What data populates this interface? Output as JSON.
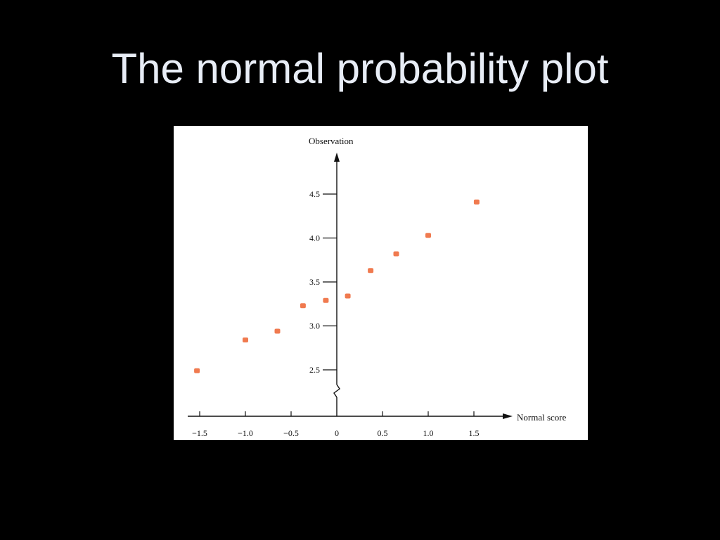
{
  "slide": {
    "title": "The normal probability plot"
  },
  "chart_data": {
    "type": "scatter",
    "xlabel": "Normal score",
    "ylabel": "Observation",
    "xlim": [
      -1.6,
      1.9
    ],
    "ylim": [
      2.2,
      4.85
    ],
    "y_axis_break": true,
    "grid": false,
    "x_ticks": [
      {
        "value": -1.5,
        "label": "−1.5"
      },
      {
        "value": -1.0,
        "label": "−1.0"
      },
      {
        "value": -0.5,
        "label": "−0.5"
      },
      {
        "value": 0,
        "label": "0"
      },
      {
        "value": 0.5,
        "label": "0.5"
      },
      {
        "value": 1.0,
        "label": "1.0"
      },
      {
        "value": 1.5,
        "label": "1.5"
      }
    ],
    "y_ticks": [
      {
        "value": 2.5,
        "label": "2.5"
      },
      {
        "value": 3.0,
        "label": "3.0"
      },
      {
        "value": 3.5,
        "label": "3.5"
      },
      {
        "value": 4.0,
        "label": "4.0"
      },
      {
        "value": 4.5,
        "label": "4.5"
      }
    ],
    "marker_color": "#f07a4f",
    "points": [
      {
        "x": -1.53,
        "y": 2.49
      },
      {
        "x": -1.0,
        "y": 2.84
      },
      {
        "x": -0.65,
        "y": 2.94
      },
      {
        "x": -0.37,
        "y": 3.23
      },
      {
        "x": -0.12,
        "y": 3.29
      },
      {
        "x": 0.12,
        "y": 3.34
      },
      {
        "x": 0.37,
        "y": 3.63
      },
      {
        "x": 0.65,
        "y": 3.82
      },
      {
        "x": 1.0,
        "y": 4.03
      },
      {
        "x": 1.53,
        "y": 4.41
      }
    ]
  }
}
